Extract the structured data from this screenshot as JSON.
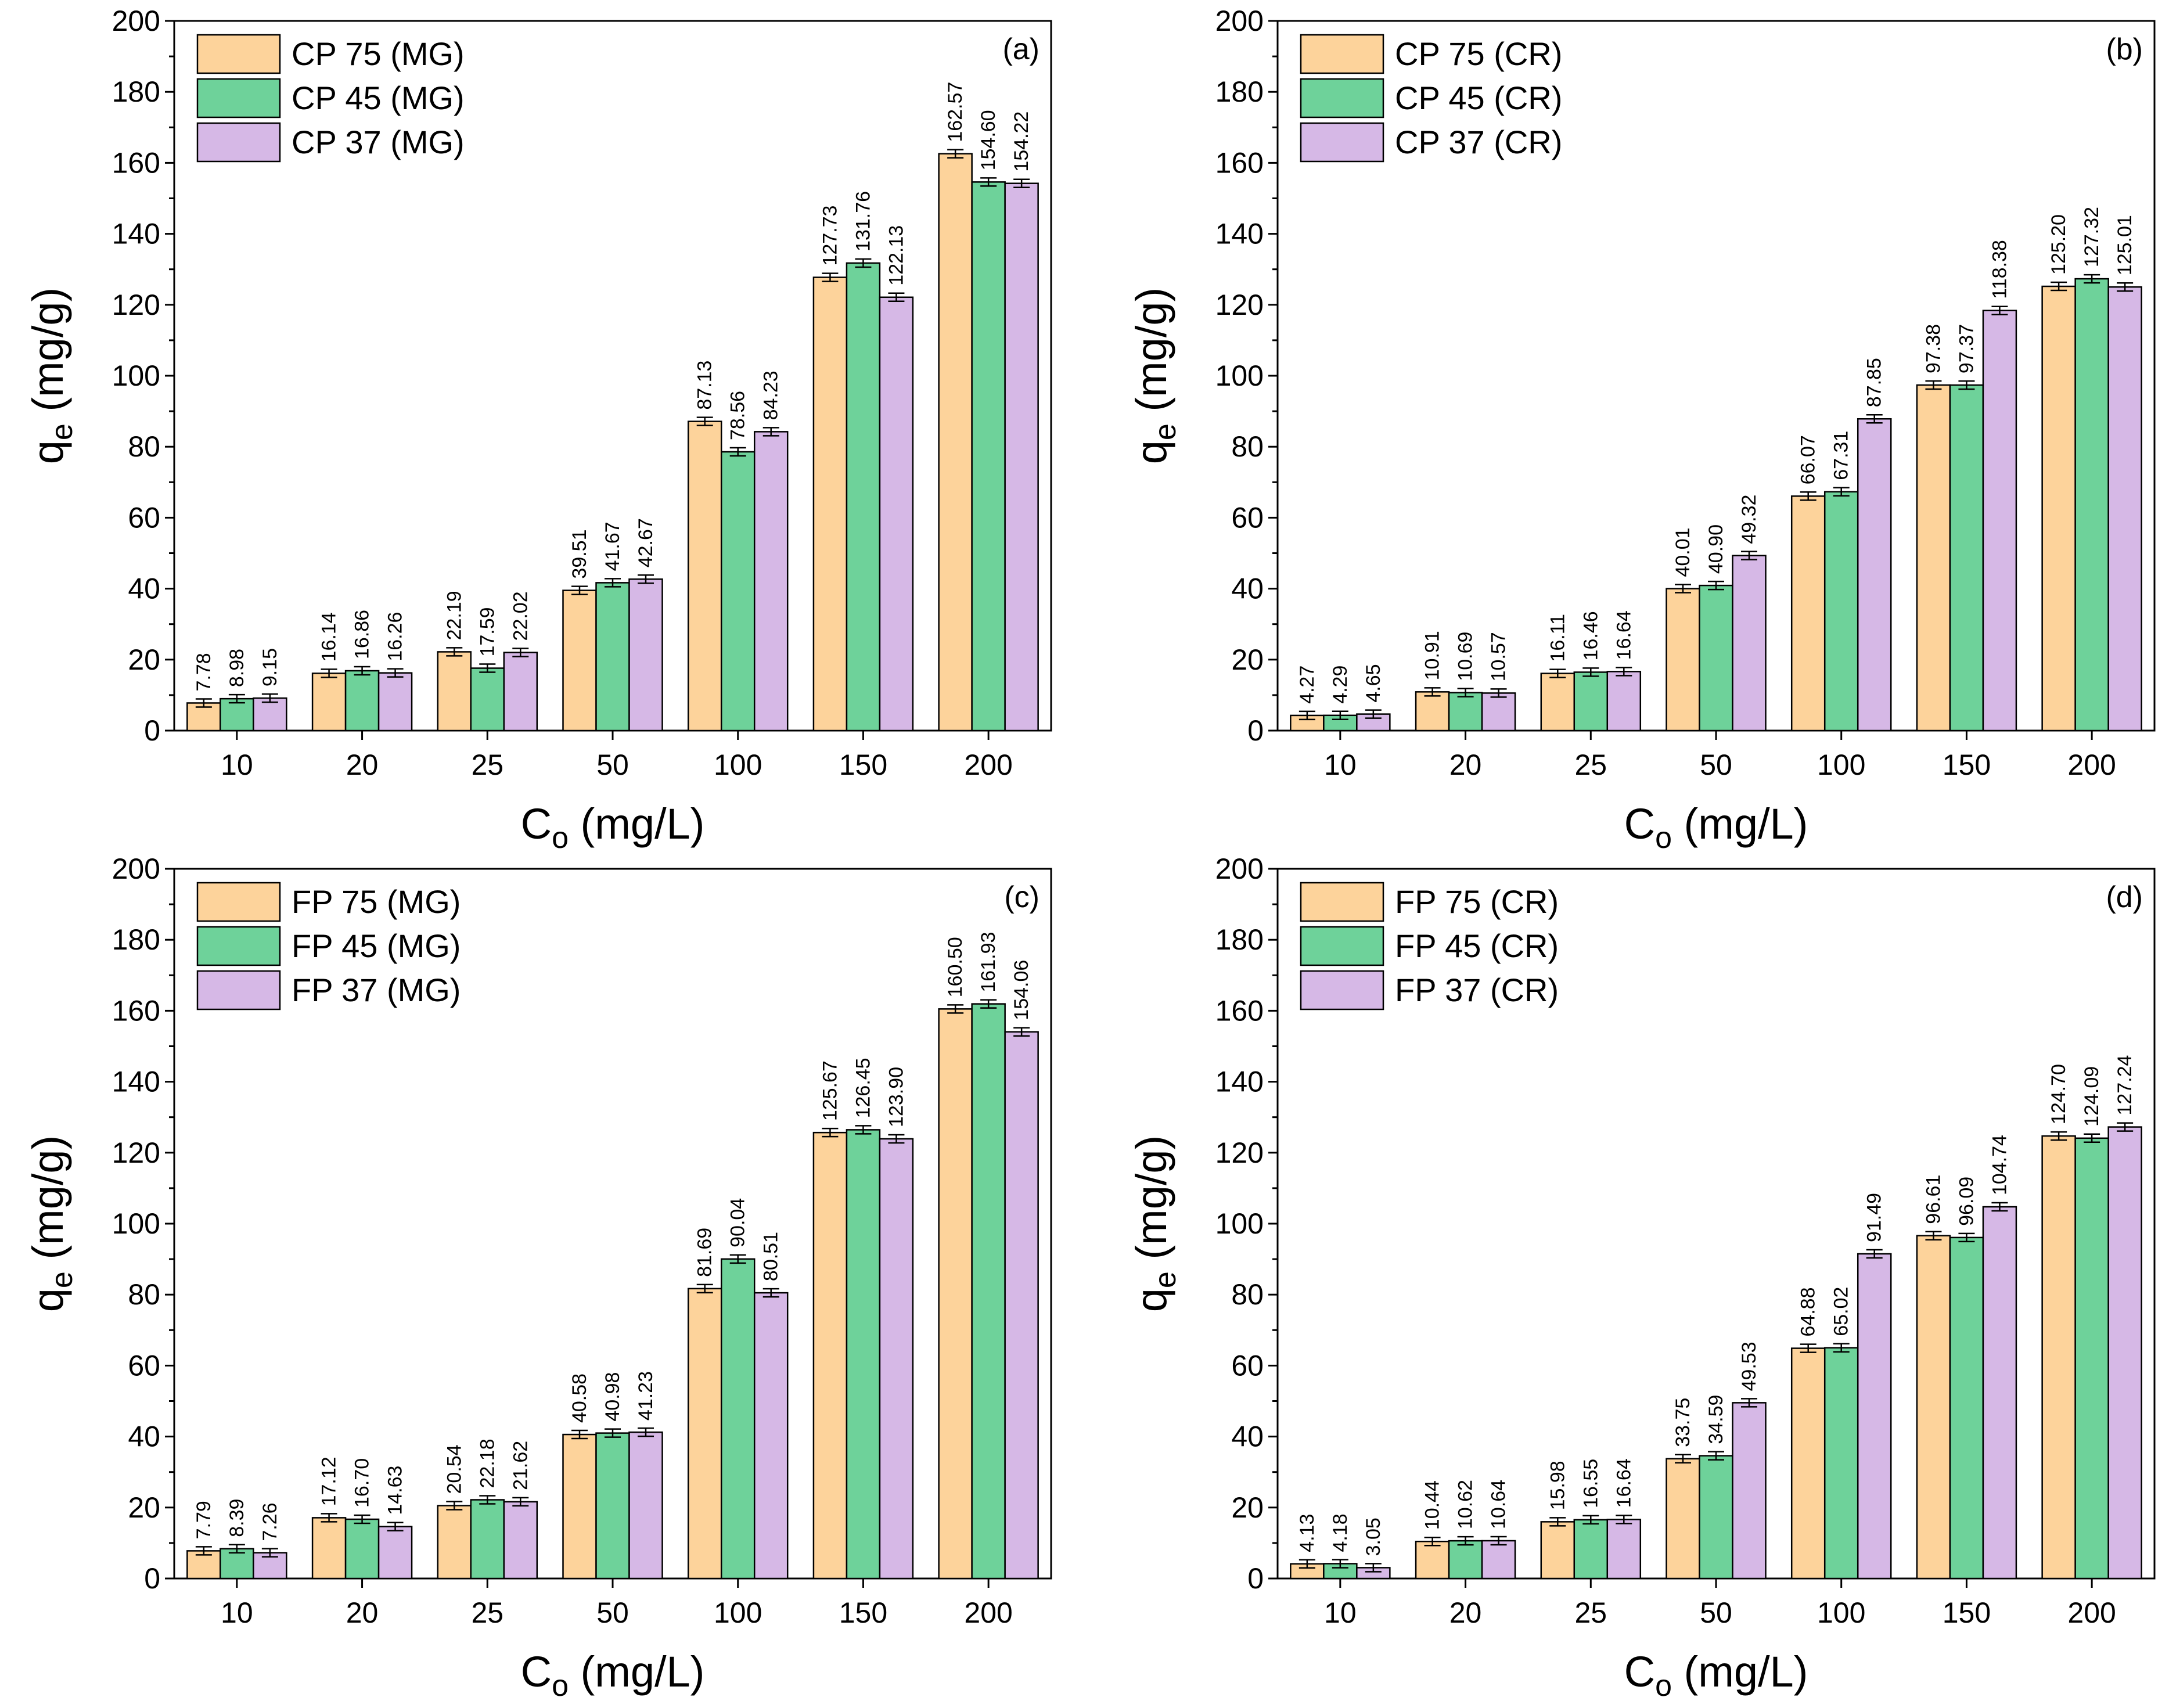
{
  "figure_colors": {
    "series_1": "#fdd39b",
    "series_2": "#6ed29a",
    "series_3": "#d6b8e6",
    "stroke": "#000000"
  },
  "chart_data": [
    {
      "type": "bar",
      "panel_tag": "(a)",
      "ylabel": "q",
      "ylabel_sub": "e",
      "ylabel_unit": "(mg/g)",
      "xlabel": "C",
      "xlabel_sub": "o",
      "xlabel_unit": "(mg/L)",
      "ylim": [
        0,
        200
      ],
      "yticks": [
        0,
        20,
        40,
        60,
        80,
        100,
        120,
        140,
        160,
        180,
        200
      ],
      "categories": [
        "10",
        "20",
        "25",
        "50",
        "100",
        "150",
        "200"
      ],
      "legend_position": "top-left",
      "series": [
        {
          "name": "CP 75 (MG)",
          "values": [
            7.78,
            16.14,
            22.19,
            39.51,
            87.13,
            127.73,
            162.57
          ],
          "labels": [
            "7.78",
            "16.14",
            "22.19",
            "39.51",
            "87.13",
            "127.73",
            "162.57"
          ]
        },
        {
          "name": "CP 45 (MG)",
          "values": [
            8.98,
            16.86,
            17.59,
            41.67,
            78.56,
            131.76,
            154.6
          ],
          "labels": [
            "8.98",
            "16.86",
            "17.59",
            "41.67",
            "78.56",
            "131.76",
            "154.60"
          ]
        },
        {
          "name": "CP 37 (MG)",
          "values": [
            9.15,
            16.26,
            22.02,
            42.67,
            84.23,
            122.13,
            154.22
          ],
          "labels": [
            "9.15",
            "16.26",
            "22.02",
            "42.67",
            "84.23",
            "122.13",
            "154.22"
          ]
        }
      ]
    },
    {
      "type": "bar",
      "panel_tag": "(b)",
      "ylabel": "q",
      "ylabel_sub": "e",
      "ylabel_unit": "(mg/g)",
      "xlabel": "C",
      "xlabel_sub": "o",
      "xlabel_unit": "(mg/L)",
      "ylim": [
        0,
        200
      ],
      "yticks": [
        0,
        20,
        40,
        60,
        80,
        100,
        120,
        140,
        160,
        180,
        200
      ],
      "categories": [
        "10",
        "20",
        "25",
        "50",
        "100",
        "150",
        "200"
      ],
      "legend_position": "top-left",
      "series": [
        {
          "name": "CP 75 (CR)",
          "values": [
            4.27,
            10.91,
            16.11,
            40.01,
            66.07,
            97.38,
            125.2
          ],
          "labels": [
            "4.27",
            "10.91",
            "16.11",
            "40.01",
            "66.07",
            "97.38",
            "125.20"
          ]
        },
        {
          "name": "CP 45 (CR)",
          "values": [
            4.29,
            10.69,
            16.46,
            40.9,
            67.31,
            97.37,
            127.32
          ],
          "labels": [
            "4.29",
            "10.69",
            "16.46",
            "40.90",
            "67.31",
            "97.37",
            "127.32"
          ]
        },
        {
          "name": "CP 37 (CR)",
          "values": [
            4.65,
            10.57,
            16.64,
            49.32,
            87.85,
            118.38,
            125.01
          ],
          "labels": [
            "4.65",
            "10.57",
            "16.64",
            "49.32",
            "87.85",
            "118.38",
            "125.01"
          ]
        }
      ]
    },
    {
      "type": "bar",
      "panel_tag": "(c)",
      "ylabel": "q",
      "ylabel_sub": "e",
      "ylabel_unit": "(mg/g)",
      "xlabel": "C",
      "xlabel_sub": "o",
      "xlabel_unit": "(mg/L)",
      "ylim": [
        0,
        200
      ],
      "yticks": [
        0,
        20,
        40,
        60,
        80,
        100,
        120,
        140,
        160,
        180,
        200
      ],
      "categories": [
        "10",
        "20",
        "25",
        "50",
        "100",
        "150",
        "200"
      ],
      "legend_position": "top-left",
      "series": [
        {
          "name": "FP 75 (MG)",
          "values": [
            7.79,
            17.12,
            20.54,
            40.58,
            81.69,
            125.67,
            160.5
          ],
          "labels": [
            "7.79",
            "17.12",
            "20.54",
            "40.58",
            "81.69",
            "125.67",
            "160.50"
          ]
        },
        {
          "name": "FP 45 (MG)",
          "values": [
            8.39,
            16.7,
            22.18,
            40.98,
            90.04,
            126.45,
            161.93
          ],
          "labels": [
            "8.39",
            "16.70",
            "22.18",
            "40.98",
            "90.04",
            "126.45",
            "161.93"
          ]
        },
        {
          "name": "FP 37 (MG)",
          "values": [
            7.26,
            14.63,
            21.62,
            41.23,
            80.51,
            123.9,
            154.06
          ],
          "labels": [
            "7.26",
            "14.63",
            "21.62",
            "41.23",
            "80.51",
            "123.90",
            "154.06"
          ]
        }
      ]
    },
    {
      "type": "bar",
      "panel_tag": "(d)",
      "ylabel": "q",
      "ylabel_sub": "e",
      "ylabel_unit": "(mg/g)",
      "xlabel": "C",
      "xlabel_sub": "o",
      "xlabel_unit": "(mg/L)",
      "ylim": [
        0,
        200
      ],
      "yticks": [
        0,
        20,
        40,
        60,
        80,
        100,
        120,
        140,
        160,
        180,
        200
      ],
      "categories": [
        "10",
        "20",
        "25",
        "50",
        "100",
        "150",
        "200"
      ],
      "legend_position": "top-left",
      "series": [
        {
          "name": "FP 75 (CR)",
          "values": [
            4.13,
            10.44,
            15.98,
            33.75,
            64.88,
            96.61,
            124.7
          ],
          "labels": [
            "4.13",
            "10.44",
            "15.98",
            "33.75",
            "64.88",
            "96.61",
            "124.70"
          ]
        },
        {
          "name": "FP 45 (CR)",
          "values": [
            4.18,
            10.62,
            16.55,
            34.59,
            65.02,
            96.09,
            124.09
          ],
          "labels": [
            "4.18",
            "10.62",
            "16.55",
            "34.59",
            "65.02",
            "96.09",
            "124.09"
          ]
        },
        {
          "name": "FP 37 (CR)",
          "values": [
            3.05,
            10.64,
            16.64,
            49.53,
            91.49,
            104.74,
            127.24
          ],
          "labels": [
            "3.05",
            "10.64",
            "16.64",
            "49.53",
            "91.49",
            "104.74",
            "127.24"
          ]
        }
      ]
    }
  ]
}
